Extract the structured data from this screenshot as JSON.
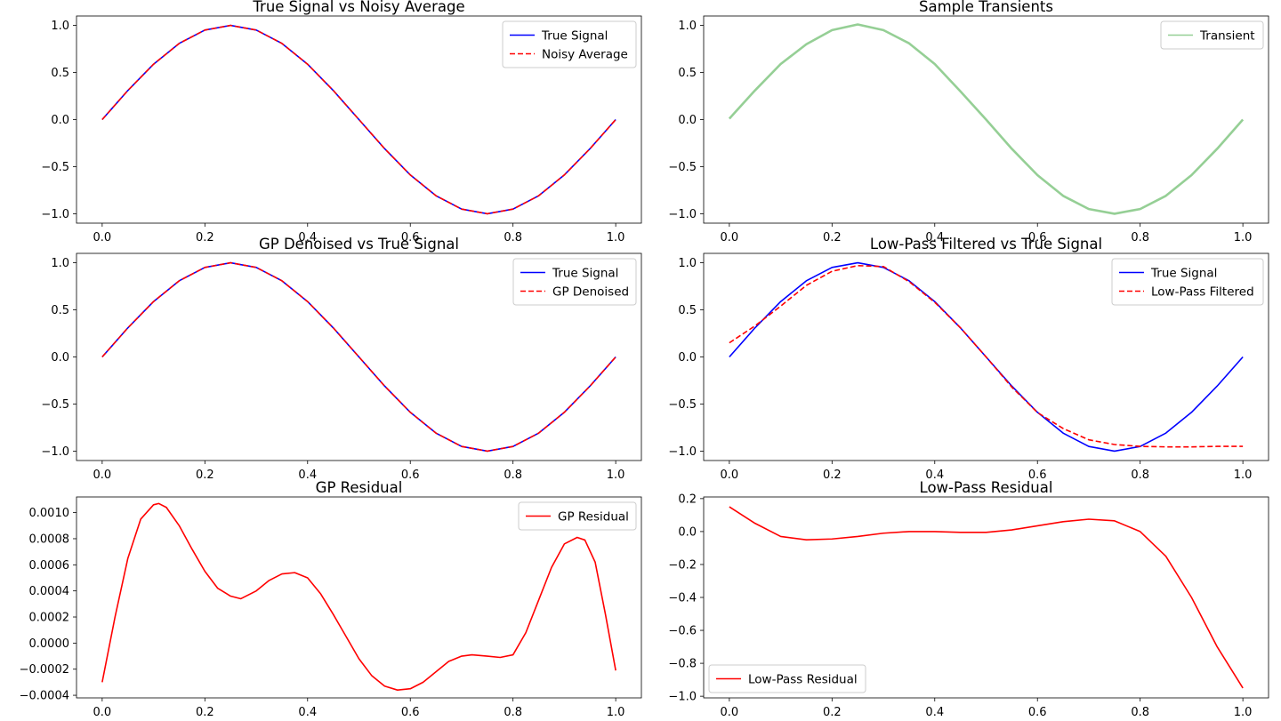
{
  "chart_data": [
    {
      "id": "p1",
      "type": "line",
      "title": "True Signal vs Noisy Average",
      "xlim": [
        -0.05,
        1.05
      ],
      "ylim": [
        -1.1,
        1.1
      ],
      "xticks": [
        0.0,
        0.2,
        0.4,
        0.6,
        0.8,
        1.0
      ],
      "xtick_labels": [
        "0.0",
        "0.2",
        "0.4",
        "0.6",
        "0.8",
        "1.0"
      ],
      "yticks": [
        1.0,
        0.5,
        0.0,
        -0.5,
        -1.0
      ],
      "ytick_labels": [
        "1.0",
        "0.5",
        "0.0",
        "−0.5",
        "−1.0"
      ],
      "legend_position": "top-right",
      "series": [
        {
          "name": "True Signal",
          "color": "#0000ff",
          "style": "solid",
          "x": [
            0.0,
            0.05,
            0.1,
            0.15,
            0.2,
            0.25,
            0.3,
            0.35,
            0.4,
            0.45,
            0.5,
            0.55,
            0.6,
            0.65,
            0.7,
            0.75,
            0.8,
            0.85,
            0.9,
            0.95,
            1.0
          ],
          "y": [
            0.0,
            0.309,
            0.588,
            0.809,
            0.951,
            1.0,
            0.951,
            0.809,
            0.588,
            0.309,
            0.0,
            -0.309,
            -0.588,
            -0.809,
            -0.951,
            -1.0,
            -0.951,
            -0.809,
            -0.588,
            -0.309,
            0.0
          ]
        },
        {
          "name": "Noisy Average",
          "color": "#ff0000",
          "style": "dashed",
          "x": [
            0.0,
            0.05,
            0.1,
            0.15,
            0.2,
            0.25,
            0.3,
            0.35,
            0.4,
            0.45,
            0.5,
            0.55,
            0.6,
            0.65,
            0.7,
            0.75,
            0.8,
            0.85,
            0.9,
            0.95,
            1.0
          ],
          "y": [
            0.0,
            0.309,
            0.588,
            0.809,
            0.951,
            1.0,
            0.951,
            0.809,
            0.588,
            0.309,
            0.0,
            -0.309,
            -0.588,
            -0.809,
            -0.951,
            -1.0,
            -0.951,
            -0.809,
            -0.588,
            -0.309,
            0.0
          ]
        }
      ]
    },
    {
      "id": "p2",
      "type": "line",
      "title": "Sample Transients",
      "xlim": [
        -0.05,
        1.05
      ],
      "ylim": [
        -1.1,
        1.1
      ],
      "xticks": [
        0.0,
        0.2,
        0.4,
        0.6,
        0.8,
        1.0
      ],
      "xtick_labels": [
        "0.0",
        "0.2",
        "0.4",
        "0.6",
        "0.8",
        "1.0"
      ],
      "yticks": [
        1.0,
        0.5,
        0.0,
        -0.5,
        -1.0
      ],
      "ytick_labels": [
        "1.0",
        "0.5",
        "0.0",
        "−0.5",
        "−1.0"
      ],
      "legend_position": "top-right",
      "series": [
        {
          "name": "Transient",
          "color": "#2ca02c",
          "style": "solid",
          "opacity": 0.5,
          "x": [
            0.0,
            0.05,
            0.1,
            0.15,
            0.2,
            0.25,
            0.3,
            0.35,
            0.4,
            0.45,
            0.5,
            0.55,
            0.6,
            0.65,
            0.7,
            0.75,
            0.8,
            0.85,
            0.9,
            0.95,
            1.0
          ],
          "y": [
            0.01,
            0.31,
            0.59,
            0.8,
            0.95,
            1.01,
            0.95,
            0.81,
            0.59,
            0.3,
            0.0,
            -0.31,
            -0.59,
            -0.81,
            -0.95,
            -1.0,
            -0.95,
            -0.81,
            -0.59,
            -0.31,
            0.0
          ]
        }
      ]
    },
    {
      "id": "p3",
      "type": "line",
      "title": "GP Denoised vs True Signal",
      "xlim": [
        -0.05,
        1.05
      ],
      "ylim": [
        -1.1,
        1.1
      ],
      "xticks": [
        0.0,
        0.2,
        0.4,
        0.6,
        0.8,
        1.0
      ],
      "xtick_labels": [
        "0.0",
        "0.2",
        "0.4",
        "0.6",
        "0.8",
        "1.0"
      ],
      "yticks": [
        1.0,
        0.5,
        0.0,
        -0.5,
        -1.0
      ],
      "ytick_labels": [
        "1.0",
        "0.5",
        "0.0",
        "−0.5",
        "−1.0"
      ],
      "legend_position": "top-right",
      "series": [
        {
          "name": "True Signal",
          "color": "#0000ff",
          "style": "solid",
          "x": [
            0.0,
            0.05,
            0.1,
            0.15,
            0.2,
            0.25,
            0.3,
            0.35,
            0.4,
            0.45,
            0.5,
            0.55,
            0.6,
            0.65,
            0.7,
            0.75,
            0.8,
            0.85,
            0.9,
            0.95,
            1.0
          ],
          "y": [
            0.0,
            0.309,
            0.588,
            0.809,
            0.951,
            1.0,
            0.951,
            0.809,
            0.588,
            0.309,
            0.0,
            -0.309,
            -0.588,
            -0.809,
            -0.951,
            -1.0,
            -0.951,
            -0.809,
            -0.588,
            -0.309,
            0.0
          ]
        },
        {
          "name": "GP Denoised",
          "color": "#ff0000",
          "style": "dashed",
          "x": [
            0.0,
            0.05,
            0.1,
            0.15,
            0.2,
            0.25,
            0.3,
            0.35,
            0.4,
            0.45,
            0.5,
            0.55,
            0.6,
            0.65,
            0.7,
            0.75,
            0.8,
            0.85,
            0.9,
            0.95,
            1.0
          ],
          "y": [
            0.0,
            0.309,
            0.588,
            0.809,
            0.951,
            1.0,
            0.951,
            0.809,
            0.588,
            0.309,
            0.0,
            -0.309,
            -0.588,
            -0.809,
            -0.951,
            -1.0,
            -0.951,
            -0.809,
            -0.588,
            -0.309,
            0.0
          ]
        }
      ]
    },
    {
      "id": "p4",
      "type": "line",
      "title": "Low-Pass Filtered vs True Signal",
      "xlim": [
        -0.05,
        1.05
      ],
      "ylim": [
        -1.1,
        1.1
      ],
      "xticks": [
        0.0,
        0.2,
        0.4,
        0.6,
        0.8,
        1.0
      ],
      "xtick_labels": [
        "0.0",
        "0.2",
        "0.4",
        "0.6",
        "0.8",
        "1.0"
      ],
      "yticks": [
        1.0,
        0.5,
        0.0,
        -0.5,
        -1.0
      ],
      "ytick_labels": [
        "1.0",
        "0.5",
        "0.0",
        "−0.5",
        "−1.0"
      ],
      "legend_position": "top-right",
      "series": [
        {
          "name": "True Signal",
          "color": "#0000ff",
          "style": "solid",
          "x": [
            0.0,
            0.05,
            0.1,
            0.15,
            0.2,
            0.25,
            0.3,
            0.35,
            0.4,
            0.45,
            0.5,
            0.55,
            0.6,
            0.65,
            0.7,
            0.75,
            0.8,
            0.85,
            0.9,
            0.95,
            1.0
          ],
          "y": [
            0.0,
            0.309,
            0.588,
            0.809,
            0.951,
            1.0,
            0.951,
            0.809,
            0.588,
            0.309,
            0.0,
            -0.309,
            -0.588,
            -0.809,
            -0.951,
            -1.0,
            -0.951,
            -0.809,
            -0.588,
            -0.309,
            0.0
          ]
        },
        {
          "name": "Low-Pass Filtered",
          "color": "#ff0000",
          "style": "dashed",
          "x": [
            0.0,
            0.05,
            0.1,
            0.15,
            0.2,
            0.25,
            0.3,
            0.35,
            0.4,
            0.45,
            0.5,
            0.55,
            0.6,
            0.65,
            0.7,
            0.75,
            0.8,
            0.85,
            0.9,
            0.95,
            1.0
          ],
          "y": [
            0.15,
            0.33,
            0.54,
            0.76,
            0.91,
            0.97,
            0.96,
            0.8,
            0.58,
            0.31,
            0.0,
            -0.32,
            -0.59,
            -0.76,
            -0.88,
            -0.93,
            -0.95,
            -0.955,
            -0.955,
            -0.95,
            -0.95
          ]
        }
      ]
    },
    {
      "id": "p5",
      "type": "line",
      "title": "GP Residual",
      "xlim": [
        -0.05,
        1.05
      ],
      "ylim": [
        -0.00042,
        0.00112
      ],
      "xticks": [
        0.0,
        0.2,
        0.4,
        0.6,
        0.8,
        1.0
      ],
      "xtick_labels": [
        "0.0",
        "0.2",
        "0.4",
        "0.6",
        "0.8",
        "1.0"
      ],
      "yticks": [
        0.001,
        0.0008,
        0.0006,
        0.0004,
        0.0002,
        0.0,
        -0.0002,
        -0.0004
      ],
      "ytick_labels": [
        "0.0010",
        "0.0008",
        "0.0006",
        "0.0004",
        "0.0002",
        "0.0000",
        "−0.0002",
        "−0.0004"
      ],
      "legend_position": "top-right",
      "series": [
        {
          "name": "GP Residual",
          "color": "#ff0000",
          "style": "solid",
          "x": [
            0.0,
            0.025,
            0.05,
            0.075,
            0.1,
            0.11,
            0.125,
            0.15,
            0.175,
            0.2,
            0.225,
            0.25,
            0.27,
            0.3,
            0.325,
            0.35,
            0.375,
            0.4,
            0.425,
            0.45,
            0.475,
            0.5,
            0.525,
            0.55,
            0.575,
            0.6,
            0.625,
            0.65,
            0.675,
            0.7,
            0.72,
            0.75,
            0.775,
            0.8,
            0.825,
            0.85,
            0.875,
            0.9,
            0.925,
            0.94,
            0.96,
            0.98,
            1.0
          ],
          "y": [
            -0.0003,
            0.0002,
            0.00065,
            0.00095,
            0.00106,
            0.00107,
            0.00104,
            0.0009,
            0.00072,
            0.00055,
            0.00042,
            0.00036,
            0.00034,
            0.0004,
            0.00048,
            0.00053,
            0.00054,
            0.0005,
            0.00038,
            0.00022,
            5e-05,
            -0.00012,
            -0.00025,
            -0.00033,
            -0.00036,
            -0.00035,
            -0.0003,
            -0.00022,
            -0.00014,
            -0.0001,
            -9e-05,
            -0.0001,
            -0.00011,
            -9e-05,
            8e-05,
            0.00033,
            0.00058,
            0.00076,
            0.00081,
            0.00079,
            0.00062,
            0.00022,
            -0.00021
          ]
        }
      ]
    },
    {
      "id": "p6",
      "type": "line",
      "title": "Low-Pass Residual",
      "xlim": [
        -0.05,
        1.05
      ],
      "ylim": [
        -1.01,
        0.21
      ],
      "xticks": [
        0.0,
        0.2,
        0.4,
        0.6,
        0.8,
        1.0
      ],
      "xtick_labels": [
        "0.0",
        "0.2",
        "0.4",
        "0.6",
        "0.8",
        "1.0"
      ],
      "yticks": [
        0.2,
        0.0,
        -0.2,
        -0.4,
        -0.6,
        -0.8,
        -1.0
      ],
      "ytick_labels": [
        "0.2",
        "0.0",
        "−0.2",
        "−0.4",
        "−0.6",
        "−0.8",
        "−1.0"
      ],
      "legend_position": "lower-left",
      "series": [
        {
          "name": "Low-Pass Residual",
          "color": "#ff0000",
          "style": "solid",
          "x": [
            0.0,
            0.05,
            0.1,
            0.15,
            0.2,
            0.25,
            0.3,
            0.35,
            0.4,
            0.45,
            0.5,
            0.55,
            0.6,
            0.65,
            0.7,
            0.75,
            0.8,
            0.85,
            0.9,
            0.95,
            1.0
          ],
          "y": [
            0.15,
            0.05,
            -0.03,
            -0.05,
            -0.045,
            -0.03,
            -0.01,
            0.0,
            0.0,
            -0.005,
            -0.005,
            0.01,
            0.035,
            0.06,
            0.075,
            0.065,
            0.0,
            -0.15,
            -0.4,
            -0.7,
            -0.95
          ]
        }
      ]
    }
  ]
}
